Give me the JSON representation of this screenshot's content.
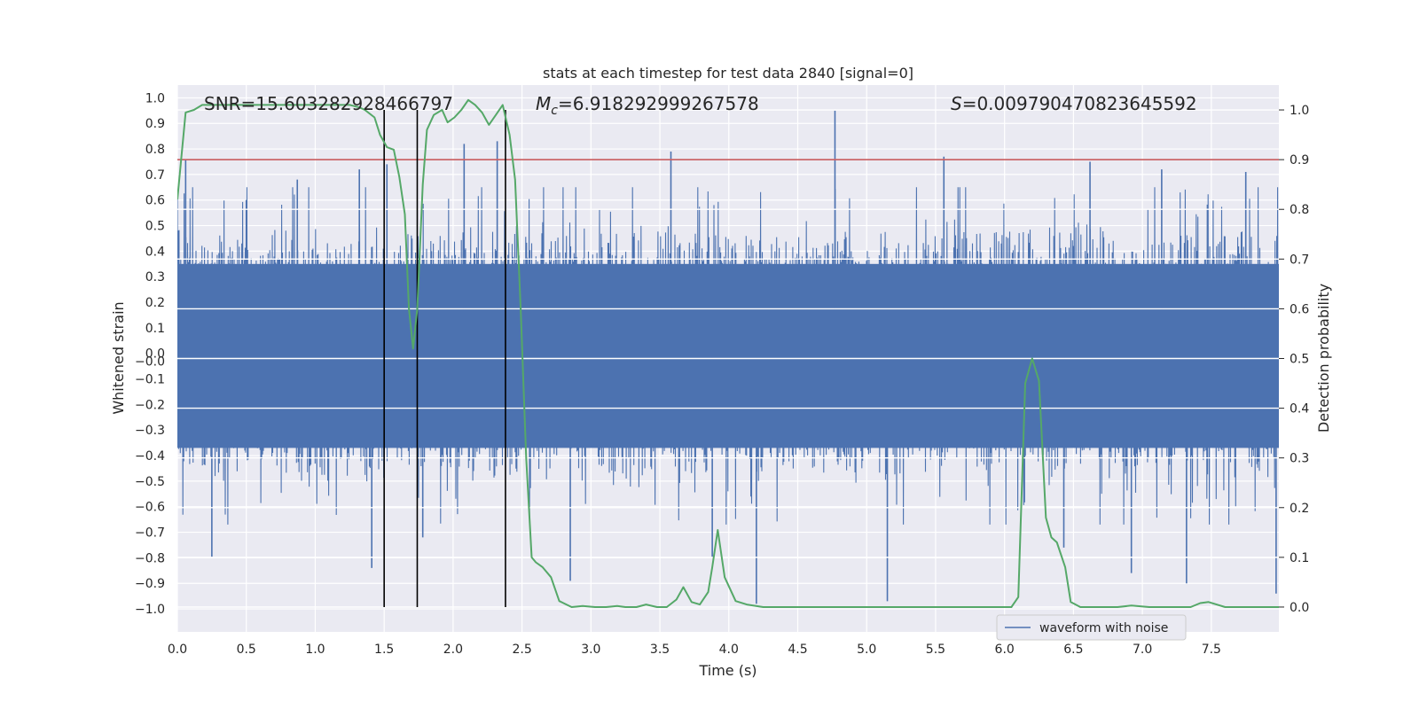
{
  "chart_data": {
    "type": "line",
    "title": "stats at each timestep for test data 2840 [signal=0]",
    "xlabel": "Time (s)",
    "ylabel_left": "Whitened strain",
    "ylabel_right": "Detection probability",
    "xlim": [
      0.0,
      7.99
    ],
    "ylim_left": [
      -1.09,
      1.05
    ],
    "ylim_right": [
      -0.05,
      1.05
    ],
    "x_ticks": [
      "0.0",
      "0.5",
      "1.0",
      "1.5",
      "2.0",
      "2.5",
      "3.0",
      "3.5",
      "4.0",
      "4.5",
      "5.0",
      "5.5",
      "6.0",
      "6.5",
      "7.0",
      "7.5"
    ],
    "x_tick_values": [
      0.0,
      0.5,
      1.0,
      1.5,
      2.0,
      2.5,
      3.0,
      3.5,
      4.0,
      4.5,
      5.0,
      5.5,
      6.0,
      6.5,
      7.0,
      7.5
    ],
    "y_left_ticks": [
      "1.0",
      "0.9",
      "0.8",
      "0.7",
      "0.6",
      "0.5",
      "0.4",
      "0.3",
      "0.2",
      "0.1",
      "0.0",
      "−0.0",
      "−0.1",
      "−0.2",
      "−0.3",
      "−0.4",
      "−0.5",
      "−0.6",
      "−0.7",
      "−0.8",
      "−0.9",
      "−1.0"
    ],
    "y_left_tick_values": [
      1.0,
      0.9,
      0.8,
      0.7,
      0.6,
      0.5,
      0.4,
      0.3,
      0.2,
      0.1,
      0.0,
      -0.0,
      -0.1,
      -0.2,
      -0.3,
      -0.4,
      -0.5,
      -0.6,
      -0.7,
      -0.8,
      -0.9,
      -1.0
    ],
    "y_right_ticks": [
      "1.0",
      "0.9",
      "0.8",
      "0.7",
      "0.6",
      "0.5",
      "0.4",
      "0.3",
      "0.2",
      "0.1",
      "0.0"
    ],
    "y_right_tick_values": [
      1.0,
      0.9,
      0.8,
      0.7,
      0.6,
      0.5,
      0.4,
      0.3,
      0.2,
      0.1,
      0.0
    ],
    "annotations": {
      "snr": "SNR=15.603282928466797",
      "mc_symbol": "M",
      "mc_sub": "c",
      "mc_value": "=6.918292999267578",
      "s_symbol": "S",
      "s_value": "=0.009790470823645592"
    },
    "threshold": {
      "value": 0.9,
      "axis": "right",
      "color": "#c44e52"
    },
    "vertical_lines": [
      1.5,
      1.74,
      2.38
    ],
    "legend": {
      "label": "waveform with noise",
      "placement": "lower-right"
    },
    "series": [
      {
        "name": "waveform with noise",
        "axis": "left",
        "color": "#4c72b0",
        "typical_envelope": [
          -0.42,
          0.4
        ],
        "spike_peaks_high": [
          [
            0.06,
            0.76
          ],
          [
            0.5,
            0.6
          ],
          [
            0.87,
            0.68
          ],
          [
            1.32,
            0.72
          ],
          [
            1.52,
            0.74
          ],
          [
            2.08,
            0.82
          ],
          [
            2.32,
            0.83
          ],
          [
            3.58,
            0.79
          ],
          [
            4.77,
            0.95
          ],
          [
            5.56,
            0.77
          ],
          [
            6.62,
            0.75
          ],
          [
            7.14,
            0.72
          ],
          [
            7.75,
            0.71
          ]
        ],
        "spike_peaks_low": [
          [
            0.25,
            -0.8
          ],
          [
            1.41,
            -0.84
          ],
          [
            1.78,
            -0.72
          ],
          [
            2.85,
            -0.89
          ],
          [
            3.88,
            -0.8
          ],
          [
            4.2,
            -0.98
          ],
          [
            5.15,
            -0.97
          ],
          [
            6.43,
            -0.76
          ],
          [
            6.92,
            -0.86
          ],
          [
            7.32,
            -0.9
          ],
          [
            7.97,
            -0.94
          ]
        ]
      },
      {
        "name": "detection probability",
        "axis": "right",
        "color": "#55a868",
        "x": [
          0.0,
          0.06,
          0.12,
          0.18,
          0.25,
          0.5,
          0.75,
          1.0,
          1.15,
          1.25,
          1.32,
          1.36,
          1.43,
          1.47,
          1.52,
          1.57,
          1.61,
          1.65,
          1.68,
          1.71,
          1.74,
          1.78,
          1.81,
          1.86,
          1.92,
          1.96,
          2.01,
          2.06,
          2.11,
          2.16,
          2.21,
          2.26,
          2.31,
          2.36,
          2.41,
          2.45,
          2.49,
          2.53,
          2.57,
          2.6,
          2.65,
          2.71,
          2.77,
          2.86,
          2.94,
          3.03,
          3.11,
          3.19,
          3.25,
          3.33,
          3.4,
          3.48,
          3.55,
          3.62,
          3.67,
          3.73,
          3.79,
          3.85,
          3.88,
          3.92,
          3.97,
          4.05,
          4.13,
          4.25,
          4.5,
          4.75,
          5.0,
          5.25,
          5.5,
          5.75,
          6.0,
          6.05,
          6.1,
          6.15,
          6.2,
          6.25,
          6.3,
          6.34,
          6.38,
          6.44,
          6.48,
          6.55,
          6.62,
          6.72,
          6.82,
          6.92,
          7.05,
          7.15,
          7.25,
          7.35,
          7.42,
          7.48,
          7.6,
          7.75,
          7.99
        ],
        "values": [
          0.82,
          0.995,
          1.0,
          1.01,
          1.01,
          1.01,
          1.01,
          1.01,
          1.01,
          1.01,
          1.005,
          1.0,
          0.985,
          0.95,
          0.925,
          0.92,
          0.865,
          0.79,
          0.6,
          0.52,
          0.6,
          0.85,
          0.96,
          0.99,
          1.0,
          0.975,
          0.985,
          1.0,
          1.02,
          1.01,
          0.995,
          0.97,
          0.99,
          1.01,
          0.95,
          0.86,
          0.6,
          0.3,
          0.1,
          0.09,
          0.08,
          0.06,
          0.012,
          0.0,
          0.002,
          0.0,
          0.0,
          0.002,
          0.0,
          0.0,
          0.005,
          0.0,
          0.0,
          0.015,
          0.04,
          0.01,
          0.005,
          0.03,
          0.08,
          0.155,
          0.06,
          0.012,
          0.005,
          0.0,
          0.0,
          0.0,
          0.0,
          0.0,
          0.0,
          0.0,
          0.0,
          0.0,
          0.02,
          0.45,
          0.5,
          0.455,
          0.18,
          0.14,
          0.13,
          0.08,
          0.01,
          0.0,
          0.0,
          0.0,
          0.0,
          0.003,
          0.0,
          0.0,
          0.0,
          0.0,
          0.008,
          0.01,
          0.0,
          0.0,
          0.0
        ]
      }
    ]
  }
}
